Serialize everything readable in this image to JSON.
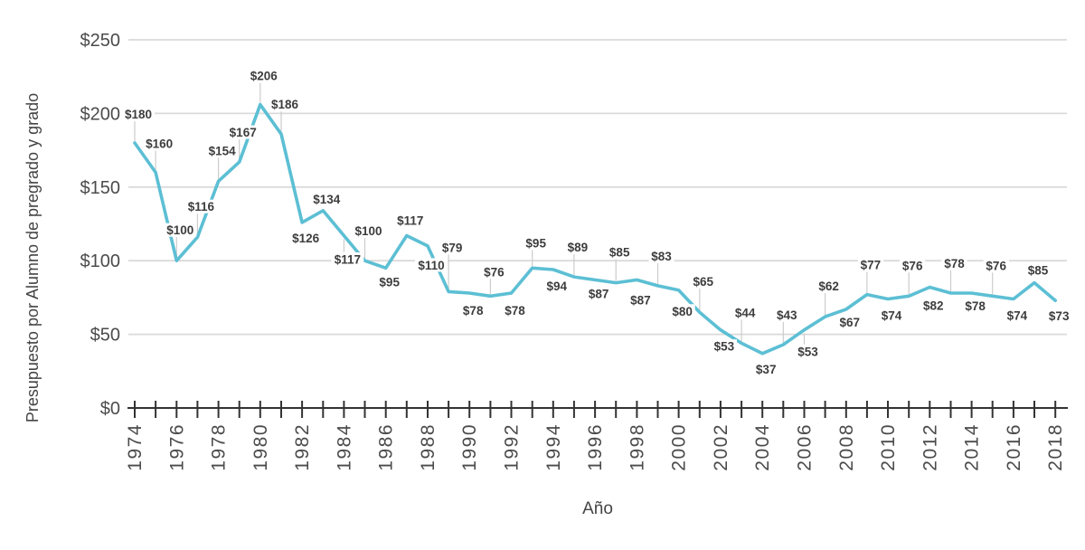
{
  "chart_data": {
    "type": "line",
    "title": "",
    "xlabel": "Año",
    "ylabel": "Presupuesto por Alumno de pregrado y grado",
    "x": [
      1974,
      1975,
      1976,
      1977,
      1978,
      1979,
      1980,
      1981,
      1982,
      1983,
      1984,
      1985,
      1986,
      1987,
      1988,
      1989,
      1990,
      1991,
      1992,
      1993,
      1994,
      1995,
      1996,
      1997,
      1998,
      1999,
      2000,
      2001,
      2002,
      2003,
      2004,
      2005,
      2006,
      2007,
      2008,
      2009,
      2010,
      2011,
      2012,
      2013,
      2014,
      2015,
      2016,
      2017,
      2018
    ],
    "values": [
      180,
      160,
      100,
      116,
      154,
      167,
      206,
      186,
      126,
      134,
      117,
      100,
      95,
      117,
      110,
      79,
      78,
      76,
      78,
      95,
      94,
      89,
      87,
      85,
      87,
      83,
      80,
      65,
      53,
      44,
      37,
      43,
      53,
      62,
      67,
      77,
      74,
      76,
      82,
      78,
      78,
      76,
      74,
      85,
      73
    ],
    "point_labels": [
      "$180",
      "$160",
      "$100",
      "$116",
      "$154",
      "$167",
      "$206",
      "$186",
      "$126",
      "$134",
      "$117",
      "$100",
      "$95",
      "$117",
      "$110",
      "$79",
      "$78",
      "$76",
      "$78",
      "$95",
      "$94",
      "$89",
      "$87",
      "$85",
      "$87",
      "$83",
      "$80",
      "$65",
      "$53",
      "$44",
      "$37",
      "$43",
      "$53",
      "$62",
      "$67",
      "$77",
      "$74",
      "$76",
      "$82",
      "$78",
      "$78",
      "$76",
      "$74",
      "$85",
      "$73"
    ],
    "value_prefix": "$",
    "ylim": [
      0,
      250
    ],
    "y_tick_values": [
      0,
      50,
      100,
      150,
      200,
      250
    ],
    "y_tick_labels": [
      "$0",
      "$50",
      "$100",
      "$150",
      "$200",
      "$250"
    ],
    "x_tick_labels": [
      "1974",
      "1976",
      "1978",
      "1980",
      "1982",
      "1984",
      "1986",
      "1988",
      "1990",
      "1992",
      "1994",
      "1996",
      "1998",
      "2000",
      "2002",
      "2004",
      "2006",
      "2008",
      "2010",
      "2012",
      "2014",
      "2016",
      "2018"
    ],
    "x_tick_label_rotation": -90,
    "grid": "horizontal",
    "legend_position": "none",
    "label_offsets": [
      -32,
      -32,
      -34,
      -34,
      -34,
      -33,
      -32,
      -33,
      17,
      -13,
      26,
      -33,
      15,
      -17,
      21,
      -49,
      19,
      -27,
      19,
      -28,
      18,
      -33,
      15,
      -34,
      22,
      -33,
      23,
      -34,
      18,
      -34,
      17,
      -33,
      24,
      -34,
      14,
      -33,
      18,
      -34,
      20,
      -33,
      14,
      -34,
      18,
      -14,
      17
    ],
    "colors": {
      "line": "#5cbfd4",
      "grid": "#dadada",
      "axis": "#333333",
      "tick_label": "#4b4b4b",
      "data_label": "#3d3d3d",
      "axis_title": "#444444",
      "leader": "#cccccc",
      "background": "#ffffff"
    }
  }
}
